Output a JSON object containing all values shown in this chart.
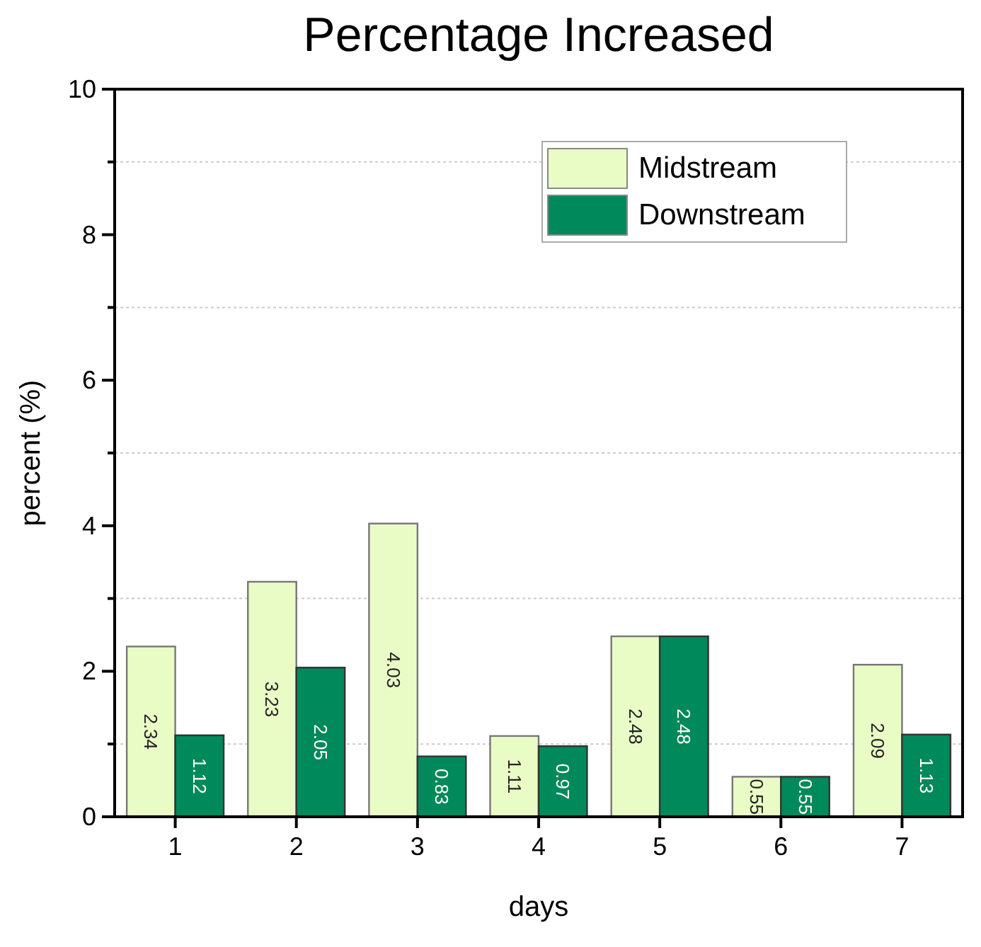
{
  "chart_data": {
    "type": "bar",
    "title": "Percentage Increased",
    "xlabel": "days",
    "ylabel": "percent (%)",
    "categories": [
      "1",
      "2",
      "3",
      "4",
      "5",
      "6",
      "7"
    ],
    "series": [
      {
        "name": "Midstream",
        "color": "#eafcc6",
        "values": [
          2.34,
          3.23,
          4.03,
          1.11,
          2.48,
          0.55,
          2.09
        ]
      },
      {
        "name": "Downstream",
        "color": "#00895a",
        "values": [
          1.12,
          2.05,
          0.83,
          0.97,
          2.48,
          0.55,
          1.13
        ]
      }
    ],
    "ylim": [
      0,
      10
    ],
    "yticks": [
      0,
      {
        "value": 1,
        "label": null
      },
      2,
      {
        "value": 3,
        "label": null
      },
      4,
      {
        "value": 5,
        "label": null
      },
      6,
      {
        "value": 7,
        "label": null
      },
      8,
      {
        "value": 9,
        "label": null
      },
      10
    ],
    "grid": true,
    "legend": "top right",
    "data_labels": true
  }
}
